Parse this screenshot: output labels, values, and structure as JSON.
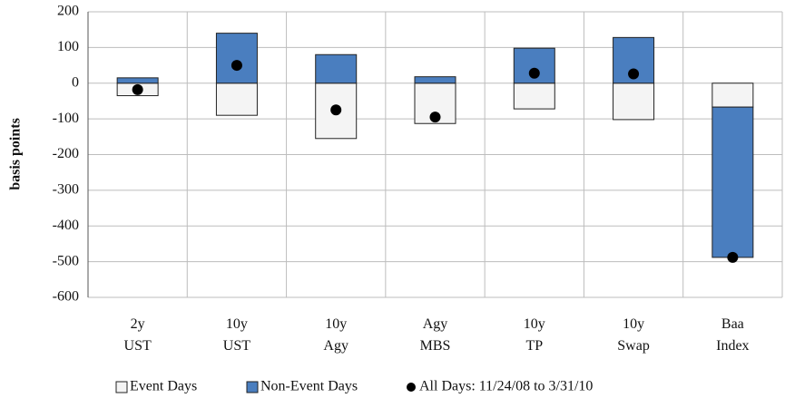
{
  "chart_data": {
    "type": "bar",
    "y_label": "basis points",
    "categories": [
      "2y UST",
      "10y UST",
      "10y Agy",
      "Agy MBS",
      "10y TP",
      "10y Swap",
      "Baa Index"
    ],
    "series": [
      {
        "name": "Event Days",
        "type": "bar",
        "color": "#f4f4f4",
        "values": [
          -35,
          -90,
          -155,
          -113,
          -72,
          -102,
          -67
        ]
      },
      {
        "name": "Non-Event Days",
        "type": "bar",
        "color": "#4a7ebf",
        "values": [
          15,
          140,
          80,
          18,
          98,
          128,
          -421
        ]
      },
      {
        "name": "All Days: 11/24/08 to 3/31/10",
        "type": "scatter",
        "color": "#000000",
        "values": [
          -18,
          50,
          -75,
          -95,
          28,
          26,
          -488
        ]
      }
    ],
    "ylim": [
      -600,
      200
    ],
    "yticks": [
      -600,
      -500,
      -400,
      -300,
      -200,
      -100,
      0,
      100,
      200
    ],
    "grid": true
  }
}
